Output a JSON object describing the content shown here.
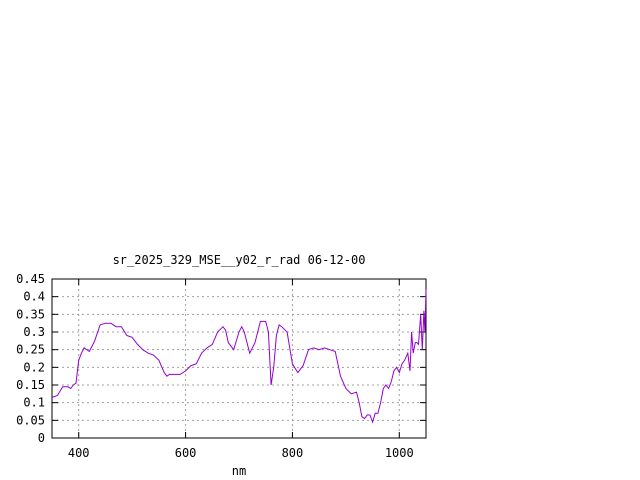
{
  "chart_data": {
    "type": "line",
    "title": "sr_2025_329_MSE__y02_r_rad 06-12-00",
    "xlabel": "nm",
    "ylabel": "",
    "xlim": [
      350,
      1050
    ],
    "ylim": [
      0,
      0.45
    ],
    "x_ticks": [
      400,
      600,
      800,
      1000
    ],
    "y_ticks": [
      0,
      0.05,
      0.1,
      0.15,
      0.2,
      0.25,
      0.3,
      0.35,
      0.4,
      0.45
    ],
    "x_tick_labels": [
      "400",
      "600",
      "800",
      "1000"
    ],
    "y_tick_labels": [
      "0",
      "0.05",
      "0.1",
      "0.15",
      "0.2",
      "0.25",
      "0.3",
      "0.35",
      "0.4",
      "0.45"
    ],
    "grid": true,
    "legend": "none",
    "line_color": "#9400d3",
    "series": [
      {
        "x": [
          350,
          360,
          370,
          380,
          385,
          390,
          395,
          400,
          405,
          410,
          420,
          430,
          440,
          450,
          460,
          470,
          480,
          490,
          500,
          510,
          520,
          530,
          540,
          550,
          560,
          565,
          570,
          580,
          590,
          600,
          610,
          620,
          630,
          640,
          650,
          660,
          670,
          675,
          680,
          690,
          700,
          705,
          710,
          720,
          730,
          740,
          750,
          755,
          760,
          765,
          770,
          775,
          780,
          790,
          800,
          810,
          820,
          830,
          840,
          850,
          860,
          870,
          880,
          890,
          900,
          910,
          920,
          925,
          930,
          935,
          940,
          945,
          950,
          955,
          960,
          965,
          970,
          975,
          980,
          985,
          990,
          995,
          1000,
          1005,
          1010,
          1013,
          1016,
          1020,
          1023,
          1026,
          1030,
          1033,
          1036,
          1040,
          1043,
          1046,
          1048,
          1050
        ],
        "y": [
          0.115,
          0.12,
          0.145,
          0.145,
          0.14,
          0.15,
          0.155,
          0.22,
          0.24,
          0.255,
          0.245,
          0.275,
          0.32,
          0.325,
          0.325,
          0.315,
          0.315,
          0.29,
          0.285,
          0.265,
          0.25,
          0.24,
          0.235,
          0.22,
          0.185,
          0.175,
          0.18,
          0.18,
          0.18,
          0.19,
          0.205,
          0.21,
          0.24,
          0.255,
          0.265,
          0.3,
          0.315,
          0.305,
          0.27,
          0.25,
          0.3,
          0.315,
          0.3,
          0.24,
          0.27,
          0.33,
          0.33,
          0.3,
          0.15,
          0.2,
          0.29,
          0.32,
          0.315,
          0.3,
          0.21,
          0.185,
          0.205,
          0.25,
          0.255,
          0.25,
          0.255,
          0.25,
          0.245,
          0.175,
          0.14,
          0.125,
          0.13,
          0.1,
          0.06,
          0.055,
          0.065,
          0.065,
          0.045,
          0.07,
          0.07,
          0.1,
          0.14,
          0.15,
          0.14,
          0.16,
          0.19,
          0.2,
          0.185,
          0.21,
          0.22,
          0.23,
          0.24,
          0.19,
          0.3,
          0.24,
          0.27,
          0.27,
          0.265,
          0.35,
          0.25,
          0.36,
          0.3,
          0.42
        ]
      }
    ]
  }
}
